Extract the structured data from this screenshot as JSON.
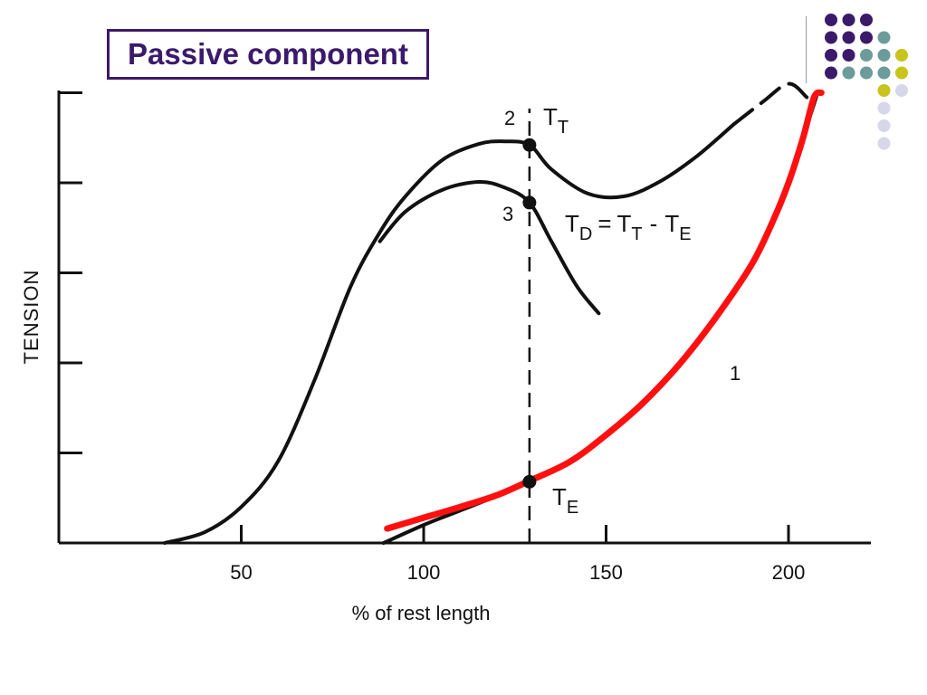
{
  "slide": {
    "title": "Passive component",
    "decor_colors": [
      "#3b1a6b",
      "#6b9c9a",
      "#c8c41e",
      "#d7d7ea"
    ]
  },
  "chart_data": {
    "type": "line",
    "title": "",
    "xlabel": "% of rest length",
    "ylabel": "TENSION",
    "xlim": [
      0,
      220
    ],
    "ylim": [
      0,
      5
    ],
    "x_ticks": [
      50,
      100,
      150,
      200
    ],
    "y_ticks": [
      1,
      2,
      3,
      4,
      5
    ],
    "grid": false,
    "legend": "none",
    "series": [
      {
        "name": "2",
        "x": [
          29,
          40,
          50,
          60,
          70,
          80,
          88,
          95,
          105,
          115,
          122,
          129,
          135,
          145,
          155,
          165,
          175,
          185
        ],
        "y": [
          0,
          0.12,
          0.4,
          0.9,
          1.8,
          2.85,
          3.45,
          3.85,
          4.25,
          4.43,
          4.46,
          4.42,
          4.15,
          3.88,
          3.85,
          4.02,
          4.3,
          4.65
        ]
      },
      {
        "name": "",
        "x": [
          185,
          193,
          200,
          205
        ],
        "y": [
          4.65,
          4.9,
          5.1,
          4.95
        ]
      },
      {
        "name": "3",
        "x": [
          88,
          95,
          105,
          115,
          122,
          129,
          135,
          142,
          148
        ],
        "y": [
          3.35,
          3.68,
          3.92,
          4.01,
          3.95,
          3.78,
          3.35,
          2.85,
          2.55
        ]
      },
      {
        "name": "1",
        "x": [
          89,
          100,
          110,
          120,
          129,
          140,
          150,
          160,
          170,
          180,
          190,
          196,
          200,
          204,
          208
        ],
        "y": [
          0,
          0.2,
          0.36,
          0.52,
          0.68,
          0.9,
          1.2,
          1.55,
          1.98,
          2.5,
          3.1,
          3.6,
          4.0,
          4.5,
          5.0
        ]
      },
      {
        "name": "passive component",
        "color": "#ff1010",
        "x": [
          90,
          100,
          110,
          120,
          129,
          140,
          150,
          160,
          170,
          180,
          190,
          196,
          200,
          204,
          207,
          209
        ],
        "y": [
          0.16,
          0.28,
          0.4,
          0.53,
          0.69,
          0.9,
          1.2,
          1.55,
          1.98,
          2.5,
          3.1,
          3.6,
          4.0,
          4.5,
          4.95,
          5.0
        ]
      }
    ],
    "reference_line": {
      "x": 129,
      "style": "dashed"
    },
    "points": [
      {
        "name": "T_T",
        "x": 129,
        "y": 4.42
      },
      {
        "name": "3",
        "x": 129,
        "y": 3.78
      },
      {
        "name": "T_E",
        "x": 129,
        "y": 0.68
      }
    ],
    "annotations": {
      "label_2": "2",
      "label_3": "3",
      "label_1": "1",
      "tt_main": "T",
      "tt_sub": "T",
      "td_main": "T",
      "td_sub": "D",
      "td_eq": "=",
      "td_t1": "T",
      "td_t1_sub": "T",
      "td_minus": "-",
      "td_t2": "T",
      "td_t2_sub": "E",
      "te_main": "T",
      "te_sub": "E"
    }
  }
}
